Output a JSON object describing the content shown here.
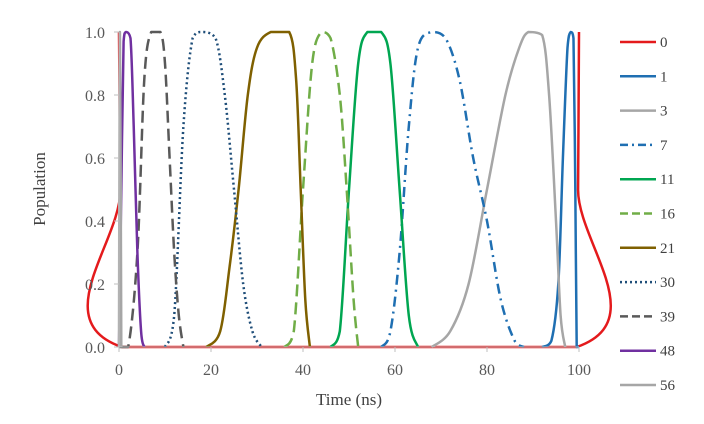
{
  "chart_data": {
    "type": "line",
    "xlabel": "Time (ns)",
    "ylabel": "Population",
    "xlim": [
      0,
      100
    ],
    "ylim": [
      0,
      1.0
    ],
    "x_ticks": [
      "0",
      "20",
      "40",
      "60",
      "80",
      "100"
    ],
    "y_ticks": [
      "0.0",
      "0.2",
      "0.4",
      "0.6",
      "0.8",
      "1.0"
    ],
    "grid": false,
    "legend_position": "right",
    "series": [
      {
        "name": "0",
        "color": "#e41a1c",
        "dash": "solid",
        "points": [
          [
            0,
            1.0
          ],
          [
            0.3,
            0.5
          ],
          [
            0.6,
            0.0
          ],
          [
            99.5,
            0.0
          ],
          [
            99.8,
            0.5
          ],
          [
            100,
            1.0
          ]
        ]
      },
      {
        "name": "1",
        "color": "#1f6fb2",
        "dash": "solid",
        "points": [
          [
            92,
            0.0
          ],
          [
            94,
            0.02
          ],
          [
            95.5,
            0.2
          ],
          [
            96.5,
            0.6
          ],
          [
            97.5,
            0.95
          ],
          [
            98.2,
            1.0
          ],
          [
            98.8,
            0.98
          ],
          [
            99.2,
            0.5
          ],
          [
            99.5,
            0.0
          ],
          [
            100,
            0.0
          ]
        ]
      },
      {
        "name": "3",
        "color": "#a6a6a6",
        "dash": "solid",
        "points": [
          [
            68,
            0.0
          ],
          [
            72,
            0.05
          ],
          [
            76,
            0.2
          ],
          [
            80,
            0.5
          ],
          [
            84,
            0.8
          ],
          [
            87,
            0.95
          ],
          [
            89,
            1.0
          ],
          [
            92,
            0.99
          ],
          [
            93.5,
            0.8
          ],
          [
            95,
            0.4
          ],
          [
            96,
            0.1
          ],
          [
            97,
            0.0
          ]
        ]
      },
      {
        "name": "7",
        "color": "#1f6fb2",
        "dash": "dashdot",
        "points": [
          [
            57,
            0.0
          ],
          [
            59,
            0.05
          ],
          [
            61,
            0.3
          ],
          [
            63,
            0.7
          ],
          [
            65,
            0.95
          ],
          [
            68,
            1.0
          ],
          [
            71,
            0.98
          ],
          [
            74,
            0.85
          ],
          [
            77,
            0.6
          ],
          [
            80,
            0.4
          ],
          [
            83,
            0.15
          ],
          [
            86,
            0.02
          ],
          [
            88,
            0.0
          ]
        ]
      },
      {
        "name": "11",
        "color": "#00a651",
        "dash": "solid",
        "points": [
          [
            46,
            0.0
          ],
          [
            48,
            0.05
          ],
          [
            50,
            0.5
          ],
          [
            52,
            0.9
          ],
          [
            54,
            1.0
          ],
          [
            57,
            1.0
          ],
          [
            59,
            0.9
          ],
          [
            61,
            0.5
          ],
          [
            63,
            0.1
          ],
          [
            65,
            0.0
          ]
        ]
      },
      {
        "name": "16",
        "color": "#70ad47",
        "dash": "dash",
        "points": [
          [
            36,
            0.0
          ],
          [
            38,
            0.05
          ],
          [
            40,
            0.5
          ],
          [
            42,
            0.9
          ],
          [
            44,
            1.0
          ],
          [
            46,
            0.98
          ],
          [
            48,
            0.8
          ],
          [
            49.5,
            0.5
          ],
          [
            51,
            0.15
          ],
          [
            52,
            0.0
          ]
        ]
      },
      {
        "name": "21",
        "color": "#7f6000",
        "dash": "solid",
        "points": [
          [
            19,
            0.0
          ],
          [
            22,
            0.05
          ],
          [
            24,
            0.25
          ],
          [
            26,
            0.5
          ],
          [
            28,
            0.8
          ],
          [
            30,
            0.95
          ],
          [
            33,
            1.0
          ],
          [
            37,
            1.0
          ],
          [
            38.5,
            0.85
          ],
          [
            39.5,
            0.5
          ],
          [
            40.5,
            0.15
          ],
          [
            41.5,
            0.0
          ]
        ]
      },
      {
        "name": "30",
        "color": "#1f4e79",
        "dash": "dot",
        "points": [
          [
            10,
            0.0
          ],
          [
            12,
            0.1
          ],
          [
            14,
            0.7
          ],
          [
            16,
            0.98
          ],
          [
            18,
            1.0
          ],
          [
            21,
            0.98
          ],
          [
            23,
            0.8
          ],
          [
            25,
            0.5
          ],
          [
            27,
            0.2
          ],
          [
            29,
            0.05
          ],
          [
            31,
            0.0
          ]
        ]
      },
      {
        "name": "39",
        "color": "#595959",
        "dash": "dash",
        "points": [
          [
            0,
            0.0
          ],
          [
            2,
            0.0
          ],
          [
            4,
            0.3
          ],
          [
            5.5,
            0.85
          ],
          [
            7,
            1.0
          ],
          [
            9,
            1.0
          ],
          [
            10,
            0.9
          ],
          [
            11,
            0.6
          ],
          [
            12,
            0.3
          ],
          [
            13,
            0.1
          ],
          [
            14,
            0.0
          ]
        ]
      },
      {
        "name": "48",
        "color": "#7030a0",
        "dash": "solid",
        "points": [
          [
            0,
            0.0
          ],
          [
            0.5,
            0.5
          ],
          [
            1,
            0.97
          ],
          [
            1.5,
            1.0
          ],
          [
            2.5,
            0.98
          ],
          [
            3.2,
            0.7
          ],
          [
            4,
            0.3
          ],
          [
            4.8,
            0.05
          ],
          [
            5.5,
            0.0
          ]
        ]
      },
      {
        "name": "56",
        "color": "#a6a6a6",
        "dash": "solid",
        "points": [
          [
            0,
            0.0
          ],
          [
            0.2,
            1.0
          ],
          [
            0.5,
            0.0
          ]
        ]
      }
    ]
  }
}
